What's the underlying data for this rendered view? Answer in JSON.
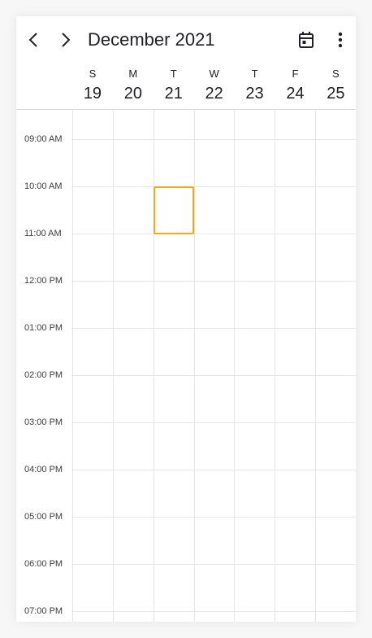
{
  "header": {
    "month_title": "December 2021",
    "prev_icon": "chevron-left-icon",
    "next_icon": "chevron-right-icon",
    "today_icon": "calendar-today-icon",
    "more_icon": "more-vert-icon"
  },
  "days": [
    {
      "letter": "S",
      "number": "19"
    },
    {
      "letter": "M",
      "number": "20"
    },
    {
      "letter": "T",
      "number": "21"
    },
    {
      "letter": "W",
      "number": "22"
    },
    {
      "letter": "T",
      "number": "23"
    },
    {
      "letter": "F",
      "number": "24"
    },
    {
      "letter": "S",
      "number": "25"
    }
  ],
  "time_labels": [
    "09:00 AM",
    "10:00 AM",
    "11:00 AM",
    "12:00 PM",
    "01:00 PM",
    "02:00 PM",
    "03:00 PM",
    "04:00 PM",
    "05:00 PM",
    "06:00 PM",
    "07:00 PM"
  ],
  "selection": {
    "day": "21",
    "start": "10:00 AM",
    "end": "11:00 AM"
  },
  "colors": {
    "selection_border": "#f2a81d",
    "grid_line": "#e6e6e6"
  }
}
